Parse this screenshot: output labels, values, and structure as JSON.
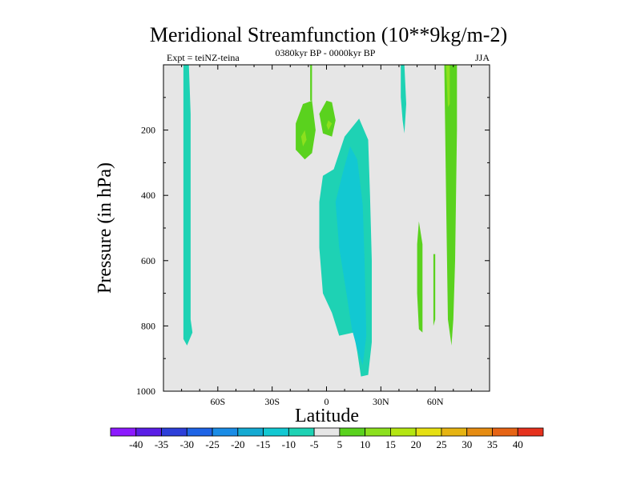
{
  "chart_data": {
    "type": "heatmap",
    "title": "Meridional Streamfunction (10**9kg/m-2)",
    "left_string": "Expt = teiNZ-teina",
    "center_string": "0380kyr BP - 0000kyr BP",
    "right_string": "JJA",
    "xlabel": "Latitude",
    "ylabel": "Pressure (in hPa)",
    "xlim": [
      -90,
      90
    ],
    "ylim": [
      0,
      1000
    ],
    "y_reversed": true,
    "x_ticks": [
      {
        "value": -60,
        "label": "60S"
      },
      {
        "value": -30,
        "label": "30S"
      },
      {
        "value": 0,
        "label": "0"
      },
      {
        "value": 30,
        "label": "30N"
      },
      {
        "value": 60,
        "label": "60N"
      }
    ],
    "y_ticks": [
      {
        "value": 200,
        "label": "200"
      },
      {
        "value": 400,
        "label": "400"
      },
      {
        "value": 600,
        "label": "600"
      },
      {
        "value": 800,
        "label": "800"
      },
      {
        "value": 1000,
        "label": "1000"
      }
    ],
    "background_color": "#e6e6e6",
    "contour_levels": [
      -40,
      -35,
      -30,
      -25,
      -20,
      -15,
      -10,
      -5,
      5,
      10,
      15,
      20,
      25,
      30,
      35,
      40
    ],
    "colorbar_colors": [
      "#8c1aff",
      "#5a1ee6",
      "#2d3fd9",
      "#1e64e6",
      "#1a8ce6",
      "#14aad2",
      "#12c8d2",
      "#1ed2b4",
      "#e6e6e6",
      "#5ad21e",
      "#8ce01e",
      "#b4e612",
      "#e6e012",
      "#e6b412",
      "#e68c12",
      "#e66414",
      "#e6321e"
    ],
    "filled_regions": [
      {
        "name": "region-sh-polar-column",
        "color": "#1ed2b4",
        "points": [
          [
            -79,
            0
          ],
          [
            -76,
            0
          ],
          [
            -75,
            150
          ],
          [
            -75,
            450
          ],
          [
            -75,
            780
          ],
          [
            -74,
            820
          ],
          [
            -77,
            860
          ],
          [
            -79,
            840
          ],
          [
            -79,
            500
          ]
        ]
      },
      {
        "name": "region-eq-lower-band",
        "color": "#1ed2b4",
        "points": [
          [
            -2,
            340
          ],
          [
            4,
            320
          ],
          [
            10,
            220
          ],
          [
            18,
            165
          ],
          [
            23,
            230
          ],
          [
            24,
            400
          ],
          [
            25,
            600
          ],
          [
            25,
            850
          ],
          [
            23,
            950
          ],
          [
            19,
            955
          ],
          [
            17,
            880
          ],
          [
            15,
            820
          ],
          [
            7,
            830
          ],
          [
            3,
            760
          ],
          [
            -2,
            700
          ],
          [
            -4,
            560
          ],
          [
            -4,
            420
          ]
        ]
      },
      {
        "name": "region-eq-core",
        "color": "#12c8d2",
        "points": [
          [
            5,
            420
          ],
          [
            9,
            330
          ],
          [
            13,
            250
          ],
          [
            17,
            290
          ],
          [
            20,
            430
          ],
          [
            21,
            600
          ],
          [
            22,
            830
          ],
          [
            20,
            920
          ],
          [
            17,
            870
          ],
          [
            14,
            810
          ],
          [
            11,
            700
          ],
          [
            7,
            560
          ]
        ]
      },
      {
        "name": "region-upper-positive-left",
        "color": "#5ad21e",
        "points": [
          [
            -17,
            180
          ],
          [
            -13,
            120
          ],
          [
            -8,
            110
          ],
          [
            -6,
            200
          ],
          [
            -8,
            270
          ],
          [
            -12,
            290
          ],
          [
            -17,
            260
          ]
        ]
      },
      {
        "name": "region-upper-positive-right",
        "color": "#5ad21e",
        "points": [
          [
            -4,
            150
          ],
          [
            0,
            110
          ],
          [
            3,
            115
          ],
          [
            5,
            170
          ],
          [
            3,
            220
          ],
          [
            -2,
            210
          ]
        ]
      },
      {
        "name": "region-upper-strong-left",
        "color": "#8ce01e",
        "points": [
          [
            -14,
            220
          ],
          [
            -12,
            200
          ],
          [
            -11,
            230
          ],
          [
            -13,
            250
          ]
        ]
      },
      {
        "name": "region-upper-strong-right",
        "color": "#8ce01e",
        "points": [
          [
            1,
            170
          ],
          [
            3,
            180
          ],
          [
            1,
            200
          ],
          [
            0,
            185
          ]
        ]
      },
      {
        "name": "region-eq-thin-positive",
        "color": "#5ad21e",
        "points": [
          [
            -9,
            0
          ],
          [
            -8,
            0
          ],
          [
            -8,
            110
          ],
          [
            -9,
            110
          ]
        ]
      },
      {
        "name": "region-40n-negative-column",
        "color": "#1ed2b4",
        "points": [
          [
            41,
            0
          ],
          [
            43,
            0
          ],
          [
            44,
            120
          ],
          [
            43,
            210
          ],
          [
            42,
            170
          ],
          [
            41,
            100
          ]
        ]
      },
      {
        "name": "region-50n-positive-column",
        "color": "#5ad21e",
        "points": [
          [
            51,
            480
          ],
          [
            53,
            550
          ],
          [
            53,
            820
          ],
          [
            51,
            810
          ],
          [
            50,
            700
          ],
          [
            50,
            550
          ]
        ]
      },
      {
        "name": "region-60n-thin-positive",
        "color": "#5ad21e",
        "points": [
          [
            59,
            580
          ],
          [
            60,
            580
          ],
          [
            60,
            780
          ],
          [
            59,
            800
          ]
        ]
      },
      {
        "name": "region-65n-positive-column",
        "color": "#5ad21e",
        "points": [
          [
            65,
            0
          ],
          [
            72,
            0
          ],
          [
            72,
            200
          ],
          [
            71,
            600
          ],
          [
            70,
            780
          ],
          [
            69,
            860
          ],
          [
            67,
            780
          ],
          [
            66,
            400
          ]
        ]
      },
      {
        "name": "region-65n-strong-core",
        "color": "#8ce01e",
        "points": [
          [
            66,
            0
          ],
          [
            68,
            0
          ],
          [
            68,
            120
          ],
          [
            67,
            130
          ]
        ]
      }
    ]
  }
}
